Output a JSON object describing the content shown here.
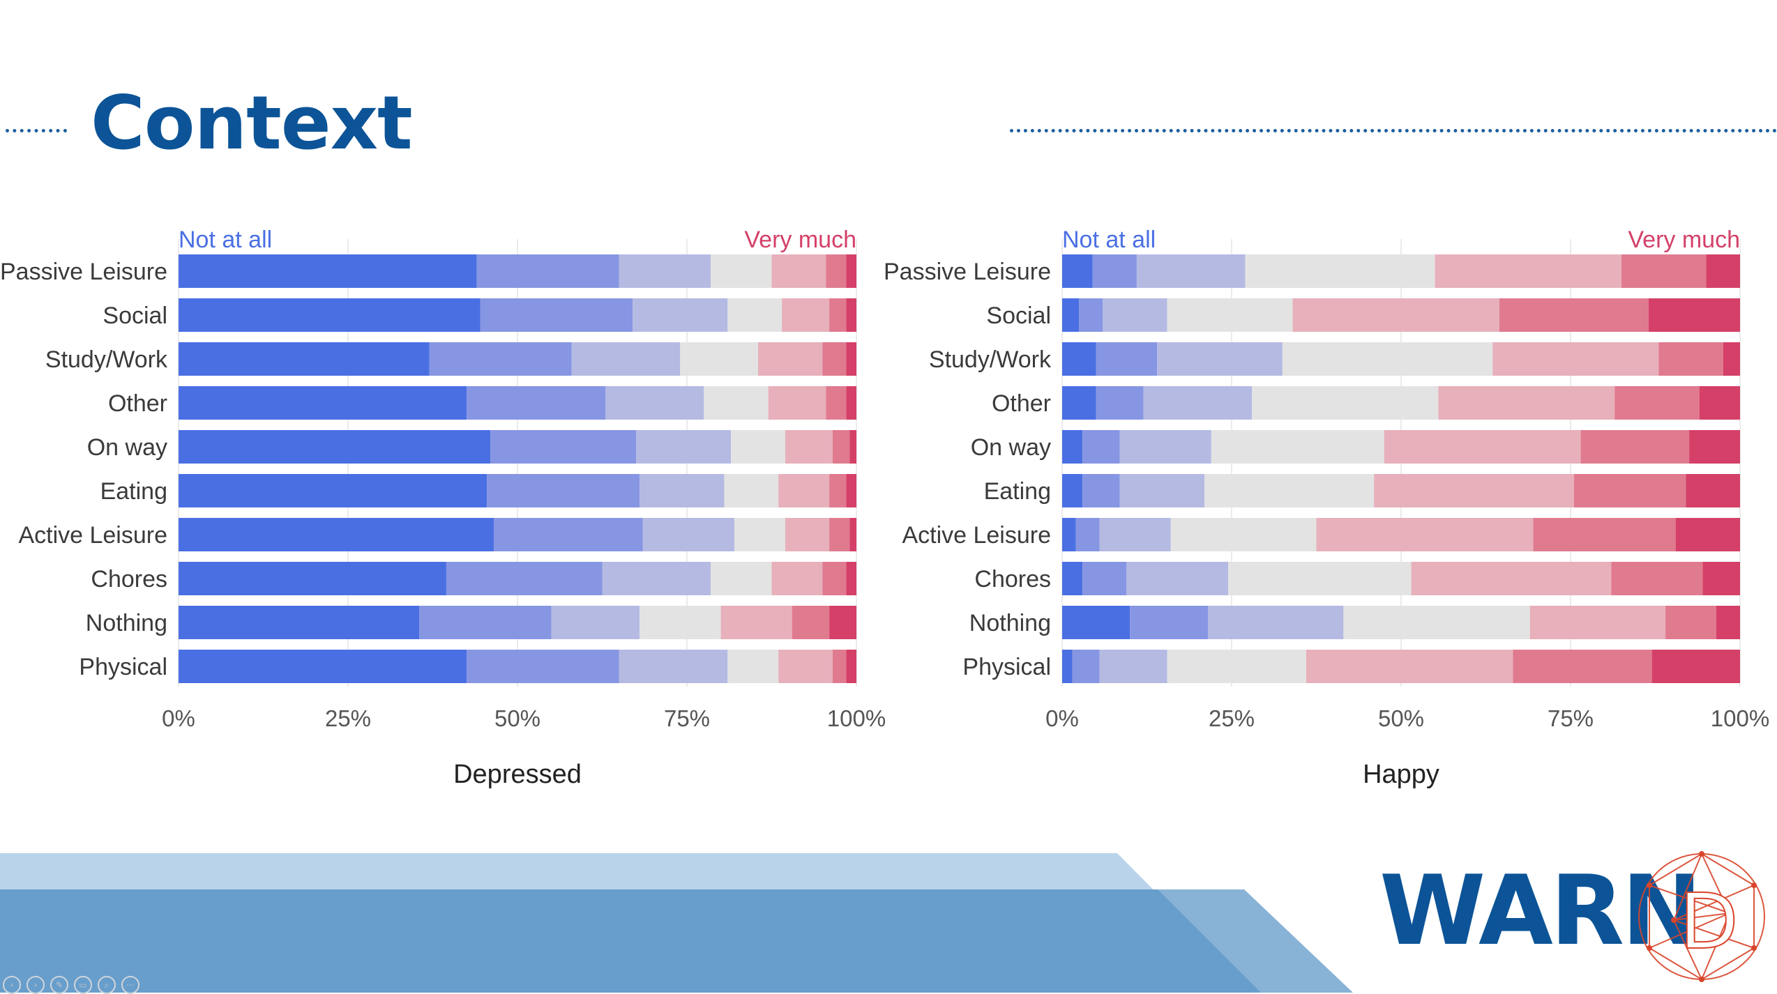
{
  "slide": {
    "title": "Context",
    "logo": {
      "text": "WARN",
      "mark_letter": "D"
    }
  },
  "colors": {
    "scale": [
      "#4a6fe3",
      "#8796e2",
      "#b5bae3",
      "#e3e3e3",
      "#e7b0bb",
      "#e07a8f",
      "#d44068"
    ],
    "title": "#0c5497",
    "low_label": "#4a6fe3",
    "high_label": "#d44068"
  },
  "chart_data": [
    {
      "type": "bar",
      "orientation": "horizontal",
      "stacked": "100%",
      "xlabel": "Depressed",
      "scale_low_label": "Not at all",
      "scale_high_label": "Very much",
      "xticks": [
        "0%",
        "25%",
        "50%",
        "75%",
        "100%"
      ],
      "xlim": [
        0,
        100
      ],
      "grid": true,
      "categories": [
        "Passive Leisure",
        "Social",
        "Study/Work",
        "Other",
        "On way",
        "Eating",
        "Active Leisure",
        "Chores",
        "Nothing",
        "Physical"
      ],
      "segments": [
        [
          44,
          21,
          13.5,
          9,
          8,
          3,
          1.5
        ],
        [
          44.5,
          22.5,
          14,
          8,
          7,
          2.5,
          1.5
        ],
        [
          37,
          21,
          16,
          11.5,
          9.5,
          3.5,
          1.5
        ],
        [
          42.5,
          20.5,
          14.5,
          9.5,
          8.5,
          3,
          1.5
        ],
        [
          46,
          21.5,
          14,
          8,
          7,
          2.5,
          1
        ],
        [
          45.5,
          22.5,
          12.5,
          8,
          7.5,
          2.5,
          1.5
        ],
        [
          46.5,
          22,
          13.5,
          7.5,
          6.5,
          3,
          1
        ],
        [
          39.5,
          23,
          16,
          9,
          7.5,
          3.5,
          1.5
        ],
        [
          35.5,
          19.5,
          13,
          12,
          10.5,
          5.5,
          4
        ],
        [
          42.5,
          22.5,
          16,
          7.5,
          8,
          2,
          1.5
        ]
      ]
    },
    {
      "type": "bar",
      "orientation": "horizontal",
      "stacked": "100%",
      "xlabel": "Happy",
      "scale_low_label": "Not at all",
      "scale_high_label": "Very much",
      "xticks": [
        "0%",
        "25%",
        "50%",
        "75%",
        "100%"
      ],
      "xlim": [
        0,
        100
      ],
      "grid": true,
      "categories": [
        "Passive Leisure",
        "Social",
        "Study/Work",
        "Other",
        "On way",
        "Eating",
        "Active Leisure",
        "Chores",
        "Nothing",
        "Physical"
      ],
      "segments": [
        [
          4.5,
          6.5,
          16,
          28,
          27.5,
          12.5,
          5
        ],
        [
          2.5,
          3.5,
          9.5,
          18.5,
          30.5,
          22,
          13.5
        ],
        [
          5,
          9,
          18.5,
          31,
          24.5,
          9.5,
          2.5
        ],
        [
          5,
          7,
          16,
          27.5,
          26,
          12.5,
          6
        ],
        [
          3,
          5.5,
          13.5,
          25.5,
          29,
          16,
          7.5
        ],
        [
          3,
          5.5,
          12.5,
          25,
          29.5,
          16.5,
          8
        ],
        [
          2,
          3.5,
          10.5,
          21.5,
          32,
          21,
          9.5
        ],
        [
          3,
          6.5,
          15,
          27,
          29.5,
          13.5,
          5.5
        ],
        [
          10,
          11.5,
          20,
          27.5,
          20,
          7.5,
          3.5
        ],
        [
          1.5,
          4,
          10,
          20.5,
          30.5,
          20.5,
          13
        ]
      ]
    }
  ]
}
